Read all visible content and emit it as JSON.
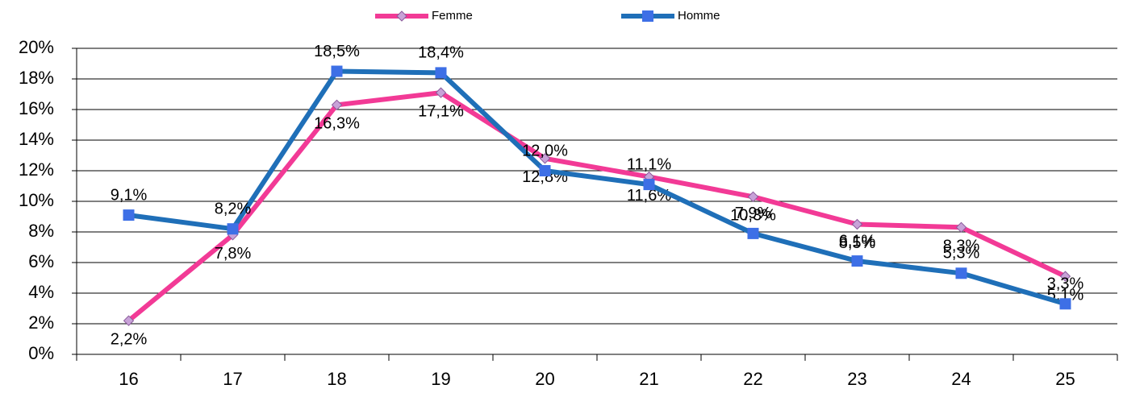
{
  "chart_data": {
    "type": "line",
    "categories": [
      "16",
      "17",
      "18",
      "19",
      "20",
      "21",
      "22",
      "23",
      "24",
      "25"
    ],
    "series": [
      {
        "name": "Femme",
        "color": "#f23a96",
        "marker": "diamond",
        "marker_color": "#c8a2d8",
        "values": [
          2.2,
          7.8,
          16.3,
          17.1,
          12.8,
          11.6,
          10.3,
          8.5,
          8.3,
          5.1
        ],
        "value_labels": [
          "2,2%",
          "7,8%",
          "16,3%",
          "17,1%",
          "12,8%",
          "11,6%",
          "10,3%",
          "8,5%",
          "8,3%",
          "5,1%"
        ]
      },
      {
        "name": "Homme",
        "color": "#1f6fb8",
        "marker": "square",
        "marker_color": "#3d6fe6",
        "values": [
          9.1,
          8.2,
          18.5,
          18.4,
          12.0,
          11.1,
          7.9,
          6.1,
          5.3,
          3.3
        ],
        "value_labels": [
          "9,1%",
          "8,2%",
          "18,5%",
          "18,4%",
          "12,0%",
          "11,1%",
          "7,9%",
          "6,1%",
          "5,3%",
          "3,3%"
        ]
      }
    ],
    "ylim": [
      0,
      20
    ],
    "yticks": [
      {
        "value": 0,
        "label": "0%"
      },
      {
        "value": 2,
        "label": "2%"
      },
      {
        "value": 4,
        "label": "4%"
      },
      {
        "value": 6,
        "label": "6%"
      },
      {
        "value": 8,
        "label": "8%"
      },
      {
        "value": 10,
        "label": "10%"
      },
      {
        "value": 12,
        "label": "12%"
      },
      {
        "value": 14,
        "label": "14%"
      },
      {
        "value": 16,
        "label": "16%"
      },
      {
        "value": 18,
        "label": "18%"
      },
      {
        "value": 20,
        "label": "20%"
      }
    ],
    "grid": true,
    "legend": "top"
  }
}
